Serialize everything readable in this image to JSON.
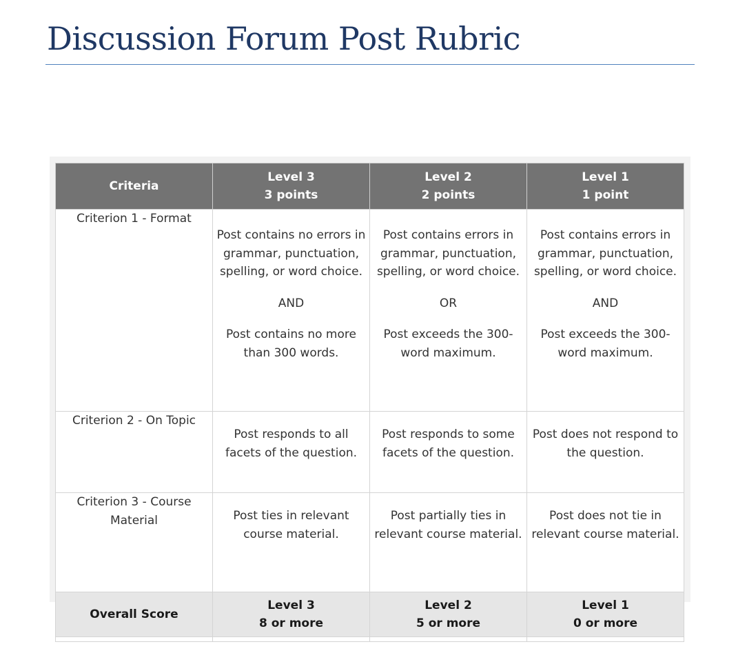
{
  "title": "Discussion Forum Post Rubric",
  "header": {
    "criteria": "Criteria",
    "levels": [
      {
        "name": "Level 3",
        "points": "3 points"
      },
      {
        "name": "Level 2",
        "points": "2 points"
      },
      {
        "name": "Level 1",
        "points": "1 point"
      }
    ]
  },
  "rows": [
    {
      "criterion": "Criterion 1 - Format",
      "cells": [
        {
          "line1": "Post contains no errors in grammar, punctuation, spelling, or word choice.",
          "connector": "AND",
          "line2": "Post contains no more than 300 words."
        },
        {
          "line1": "Post contains errors in grammar, punctuation, spelling, or word choice.",
          "connector": "OR",
          "line2": "Post exceeds the 300-word maximum."
        },
        {
          "line1": "Post contains errors in grammar, punctuation, spelling, or word choice.",
          "connector": "AND",
          "line2": "Post exceeds the 300-word maximum."
        }
      ]
    },
    {
      "criterion": "Criterion 2 - On Topic",
      "cells": [
        "Post responds to all facets of the question.",
        "Post responds to some facets of the question.",
        "Post does not respond to the question."
      ]
    },
    {
      "criterion": "Criterion 3 - Course Material",
      "cells": [
        "Post ties in relevant course material.",
        "Post partially ties in relevant course material.",
        "Post does not tie in relevant course material."
      ]
    }
  ],
  "overall": {
    "label": "Overall Score",
    "levels": [
      {
        "name": "Level 3",
        "score": "8 or more"
      },
      {
        "name": "Level 2",
        "score": "5 or more"
      },
      {
        "name": "Level 1",
        "score": "0 or more"
      }
    ]
  }
}
